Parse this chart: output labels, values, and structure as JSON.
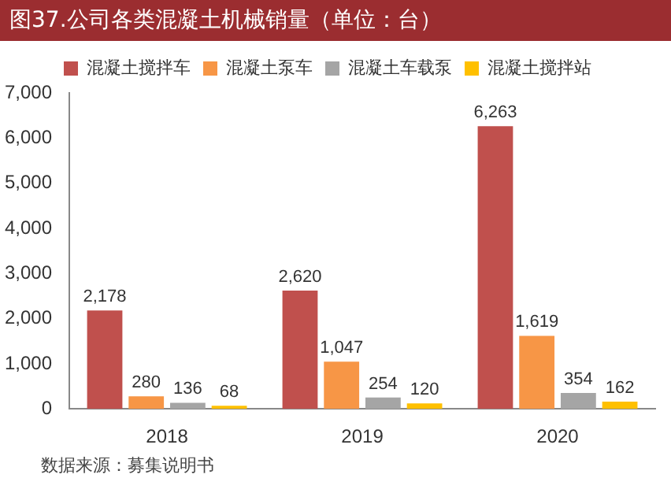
{
  "chart_data": {
    "type": "bar",
    "title": "图37.公司各类混凝土机械销量（单位：台）",
    "categories": [
      "2018",
      "2019",
      "2020"
    ],
    "series": [
      {
        "name": "混凝土搅拌车",
        "color": "#c0504d",
        "values": [
          2178,
          2620,
          6263
        ],
        "value_labels": [
          "2,178",
          "2,620",
          "6,263"
        ]
      },
      {
        "name": "混凝土泵车",
        "color": "#f79646",
        "values": [
          280,
          1047,
          1619
        ],
        "value_labels": [
          "280",
          "1,047",
          "1,619"
        ]
      },
      {
        "name": "混凝土车载泵",
        "color": "#a5a5a5",
        "values": [
          136,
          254,
          354
        ],
        "value_labels": [
          "136",
          "254",
          "354"
        ]
      },
      {
        "name": "混凝土搅拌站",
        "color": "#ffc000",
        "values": [
          68,
          120,
          162
        ],
        "value_labels": [
          "68",
          "120",
          "162"
        ]
      }
    ],
    "ylim": [
      0,
      7000
    ],
    "yticks": [
      0,
      {
        "value": 1000,
        "label": "1,000"
      },
      {
        "value": 2000,
        "label": "2,000"
      },
      {
        "value": 3000,
        "label": "3,000"
      },
      {
        "value": 4000,
        "label": "4,000"
      },
      {
        "value": 5000,
        "label": "5,000"
      },
      {
        "value": 6000,
        "label": "6,000"
      },
      {
        "value": 7000,
        "label": "7,000"
      }
    ],
    "grid": false,
    "legend": "top",
    "annotations": [
      "数据来源：募集说明书"
    ]
  }
}
